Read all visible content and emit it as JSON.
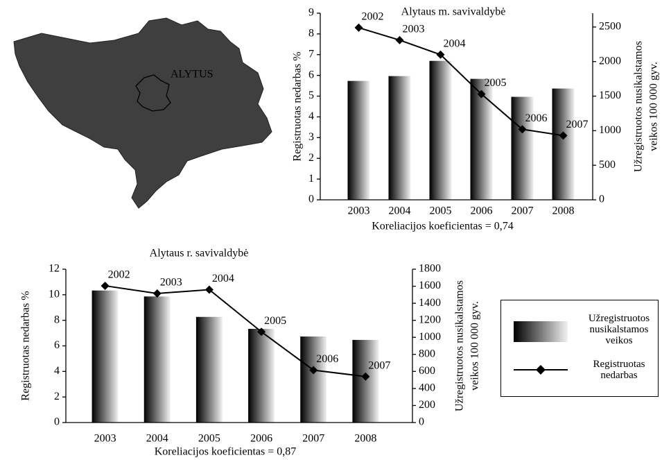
{
  "map": {
    "label": "ALYTUS"
  },
  "chart_data": [
    {
      "type": "combo",
      "title": "Alytaus m. savivaldybė",
      "ylabel": "Registruotas nedarbas %",
      "y2label": [
        "Užregistruotos nusikalstamos",
        "veikos 100 000 gyv."
      ],
      "xlabel": "Koreliacijos koeficientas = 0,74",
      "categories": [
        "2003",
        "2004",
        "2005",
        "2006",
        "2007",
        "2008"
      ],
      "ylim": [
        0,
        9
      ],
      "yticks": [
        0,
        1,
        2,
        3,
        4,
        5,
        6,
        7,
        8,
        9
      ],
      "y2lim": [
        0,
        2700
      ],
      "y2ticks": [
        0,
        500,
        1000,
        1500,
        2000,
        2500
      ],
      "series": [
        {
          "name": "Užregistruotos nusikalstamos veikos",
          "type": "bar",
          "axis": "y2",
          "color": "#000000",
          "values": [
            1720,
            1790,
            2010,
            1750,
            1490,
            1610
          ]
        },
        {
          "name": "Registruotas nedarbas",
          "type": "line",
          "axis": "y",
          "color": "#000000",
          "values": [
            8.3,
            7.7,
            7.0,
            5.1,
            3.4,
            3.1
          ],
          "point_labels": [
            "2002",
            "2003",
            "2004",
            "2005",
            "2006",
            "2007"
          ]
        }
      ]
    },
    {
      "type": "combo",
      "title": "Alytaus r. savivaldybė",
      "ylabel": "Registruotas nedarbas %",
      "y2label": [
        "Užregistruotos nusikalstamos",
        "veikos 100 000 gyv."
      ],
      "xlabel": "Koreliacijos koeficientas = 0,87",
      "categories": [
        "2003",
        "2004",
        "2005",
        "2006",
        "2007",
        "2008"
      ],
      "ylim": [
        0,
        12
      ],
      "yticks": [
        0,
        2,
        4,
        6,
        8,
        10,
        12
      ],
      "y2lim": [
        0,
        1800
      ],
      "y2ticks": [
        0,
        200,
        400,
        600,
        800,
        1000,
        1200,
        1400,
        1600,
        1800
      ],
      "series": [
        {
          "name": "Užregistruotos nusikalstamos veikos",
          "type": "bar",
          "axis": "y2",
          "color": "#000000",
          "values": [
            1550,
            1480,
            1240,
            1100,
            1010,
            970
          ]
        },
        {
          "name": "Registruotas nedarbas",
          "type": "line",
          "axis": "y",
          "color": "#000000",
          "values": [
            10.7,
            10.1,
            10.4,
            7.1,
            4.1,
            3.6
          ],
          "point_labels": [
            "2002",
            "2003",
            "2004",
            "2005",
            "2006",
            "2007"
          ]
        }
      ]
    }
  ]
}
